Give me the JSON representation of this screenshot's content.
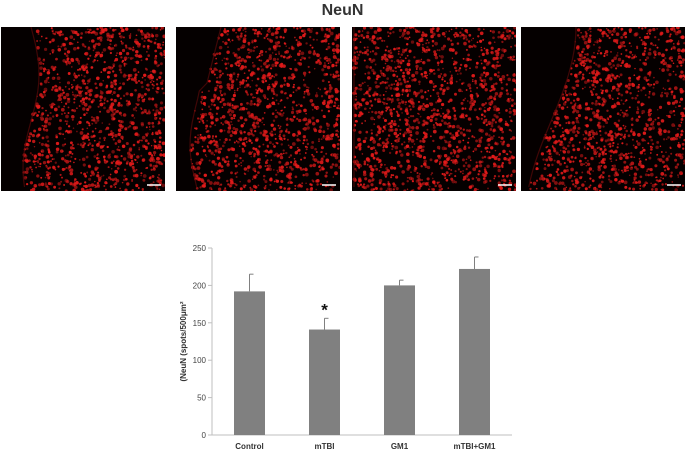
{
  "figure": {
    "title": "NeuN",
    "panels": [
      {
        "name": "control",
        "scale_bar_text": ""
      },
      {
        "name": "mtbi",
        "scale_bar_text": ""
      },
      {
        "name": "gm1",
        "scale_bar_text": ""
      },
      {
        "name": "mtbi-gm1",
        "scale_bar_text": ""
      }
    ],
    "colors": {
      "stain": "#e01a1a",
      "background": "#050000",
      "bar": "#808080"
    }
  },
  "chart_data": {
    "type": "bar",
    "title": "",
    "xlabel": "",
    "ylabel": "(NeuN (spots/500μm²",
    "categories": [
      "Control",
      "mTBI",
      "GM1",
      "mTBI+GM1"
    ],
    "values": [
      192,
      141,
      200,
      222
    ],
    "errors": [
      23,
      15,
      7,
      16
    ],
    "significance": [
      "",
      "*",
      "",
      ""
    ],
    "ylim": [
      0,
      250
    ],
    "yticks": [
      0,
      50,
      100,
      150,
      200,
      250
    ],
    "grid": false,
    "legend": "none"
  }
}
